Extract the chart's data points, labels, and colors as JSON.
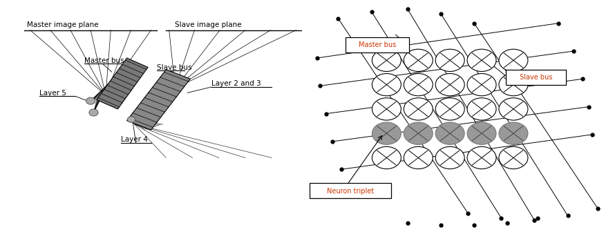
{
  "fig_width": 8.74,
  "fig_height": 3.36,
  "bg": "#ffffff",
  "lp": {
    "master_image_plane": "Master image plane",
    "slave_image_plane": "Slave image plane",
    "master_bus": "Master bus",
    "slave_bus": "Slave bus",
    "layer5": "Layer 5",
    "layer4": "Layer 4",
    "layer23": "Layer 2 and 3"
  },
  "rp": {
    "master_bus": "Master bus",
    "slave_bus": "Slave bus",
    "neuron_triplet": "Neuron triplet"
  }
}
